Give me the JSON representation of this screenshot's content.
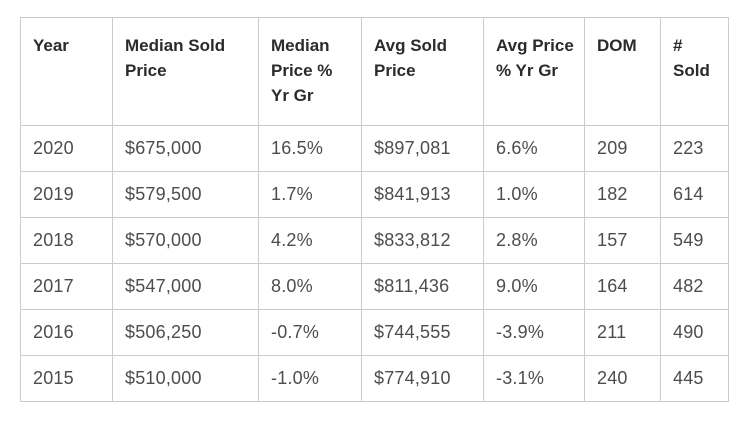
{
  "colors": {
    "background": "#ffffff",
    "border": "#cbcbcb",
    "header_text": "#2b2b2b",
    "body_text": "#4d4d4d"
  },
  "chart_data": {
    "type": "table",
    "columns": [
      "Year",
      "Median Sold Price",
      "Median Price % Yr Gr",
      "Avg Sold Price",
      "Avg Price % Yr Gr",
      "DOM",
      "# Sold"
    ],
    "rows": [
      [
        "2020",
        "$675,000",
        "16.5%",
        "$897,081",
        "6.6%",
        "209",
        "223"
      ],
      [
        "2019",
        "$579,500",
        "1.7%",
        "$841,913",
        "1.0%",
        "182",
        "614"
      ],
      [
        "2018",
        "$570,000",
        "4.2%",
        "$833,812",
        "2.8%",
        "157",
        "549"
      ],
      [
        "2017",
        "$547,000",
        "8.0%",
        "$811,436",
        "9.0%",
        "164",
        "482"
      ],
      [
        "2016",
        "$506,250",
        "-0.7%",
        "$744,555",
        "-3.9%",
        "211",
        "490"
      ],
      [
        "2015",
        "$510,000",
        "-1.0%",
        "$774,910",
        "-3.1%",
        "240",
        "445"
      ]
    ]
  }
}
